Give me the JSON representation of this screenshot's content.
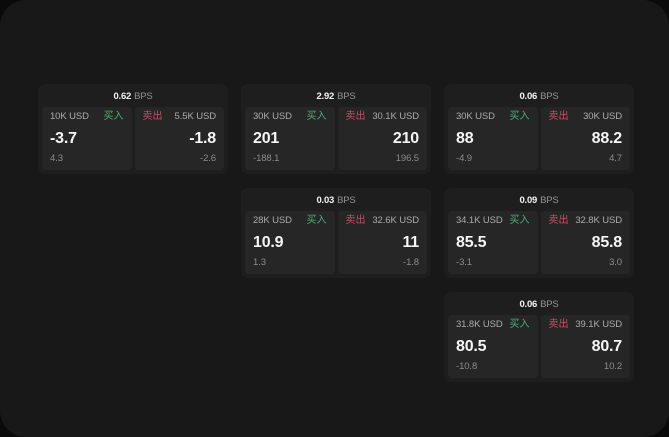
{
  "labels": {
    "buy": "买入",
    "sell": "卖出",
    "bps": "BPS"
  },
  "colors": {
    "buy_accent": "#4fae77",
    "sell_accent": "#c0506a"
  },
  "cards": [
    {
      "bps": "0.62",
      "buy": {
        "amount": "10K USD",
        "value": "-3.7",
        "sub": "4.3"
      },
      "sell": {
        "amount": "5.5K USD",
        "value": "-1.8",
        "sub": "-2.6"
      }
    },
    {
      "bps": "2.92",
      "buy": {
        "amount": "30K USD",
        "value": "201",
        "sub": "-188.1"
      },
      "sell": {
        "amount": "30.1K USD",
        "value": "210",
        "sub": "196.5"
      }
    },
    {
      "bps": "0.06",
      "buy": {
        "amount": "30K USD",
        "value": "88",
        "sub": "-4.9"
      },
      "sell": {
        "amount": "30K USD",
        "value": "88.2",
        "sub": "4.7"
      }
    },
    {
      "bps": "0.03",
      "buy": {
        "amount": "28K USD",
        "value": "10.9",
        "sub": "1.3"
      },
      "sell": {
        "amount": "32.6K USD",
        "value": "11",
        "sub": "-1.8"
      }
    },
    {
      "bps": "0.09",
      "buy": {
        "amount": "34.1K USD",
        "value": "85.5",
        "sub": "-3.1"
      },
      "sell": {
        "amount": "32.8K USD",
        "value": "85.8",
        "sub": "3.0"
      }
    },
    {
      "bps": "0.06",
      "buy": {
        "amount": "31.8K USD",
        "value": "80.5",
        "sub": "-10.8"
      },
      "sell": {
        "amount": "39.1K USD",
        "value": "80.7",
        "sub": "10.2"
      }
    }
  ]
}
